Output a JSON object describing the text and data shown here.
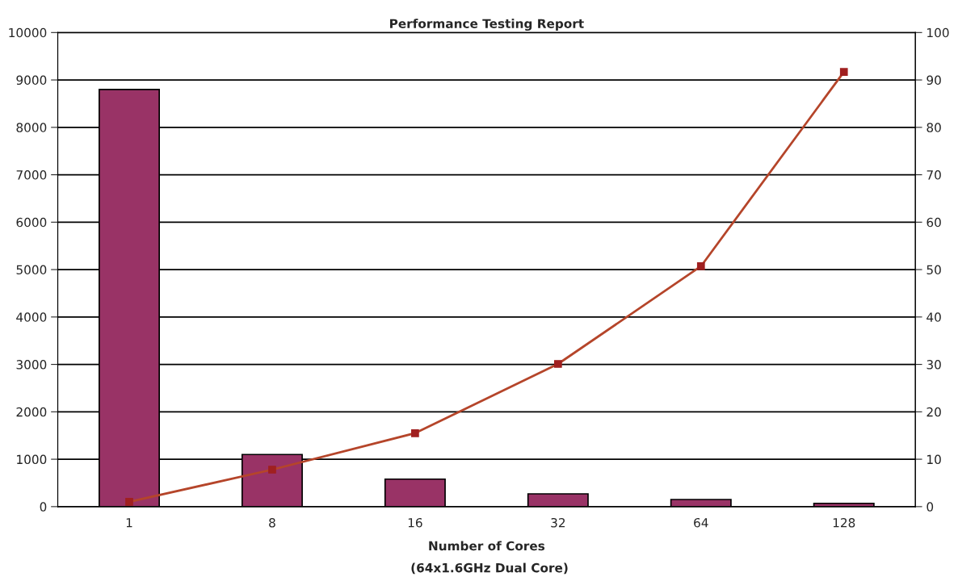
{
  "chart_data": {
    "type": "bar",
    "title": "Performance Testing Report",
    "xlabel": "Number of Cores",
    "annotations": [
      "(64x1.6GHz Dual Core)"
    ],
    "categories": [
      "1",
      "8",
      "16",
      "32",
      "64",
      "128"
    ],
    "series": [
      {
        "color": "#993366",
        "values": [
          8800,
          1100,
          580,
          270,
          150,
          70
        ]
      },
      {
        "type": "line",
        "axis": "y2",
        "color": "#b5452a",
        "marker": "square",
        "values": [
          1.0,
          7.8,
          15.5,
          30.1,
          50.7,
          91.7
        ]
      }
    ],
    "ylim": [
      0,
      10000
    ],
    "yticks": [
      0,
      1000,
      2000,
      3000,
      4000,
      5000,
      6000,
      7000,
      8000,
      9000,
      10000
    ],
    "y2lim": [
      0,
      100
    ],
    "y2ticks": [
      0,
      10,
      20,
      30,
      40,
      50,
      60,
      70,
      80,
      90,
      100
    ],
    "grid": "y",
    "legend": false
  }
}
